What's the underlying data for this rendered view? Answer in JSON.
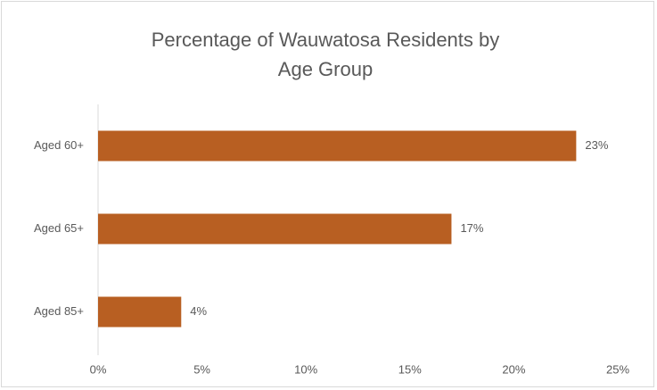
{
  "chart_data": {
    "type": "bar",
    "orientation": "horizontal",
    "title": "Percentage of Wauwatosa Residents by Age Group",
    "categories": [
      "Aged 60+",
      "Aged 65+",
      "Aged 85+"
    ],
    "values": [
      23,
      17,
      4
    ],
    "value_labels": [
      "23%",
      "17%",
      "4%"
    ],
    "color": "#b85f22",
    "xlim": [
      0,
      25
    ],
    "xticks": [
      {
        "value": 0,
        "label": "0%"
      },
      {
        "value": 5,
        "label": "5%"
      },
      {
        "value": 10,
        "label": "10%"
      },
      {
        "value": 15,
        "label": "15%"
      },
      {
        "value": 20,
        "label": "20%"
      },
      {
        "value": 25,
        "label": "25%"
      }
    ],
    "grid": false
  }
}
